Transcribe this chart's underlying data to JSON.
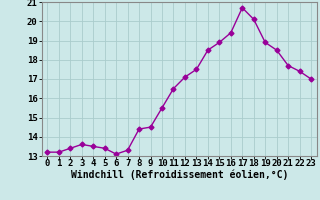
{
  "x": [
    0,
    1,
    2,
    3,
    4,
    5,
    6,
    7,
    8,
    9,
    10,
    11,
    12,
    13,
    14,
    15,
    16,
    17,
    18,
    19,
    20,
    21,
    22,
    23
  ],
  "y": [
    13.2,
    13.2,
    13.4,
    13.6,
    13.5,
    13.4,
    13.1,
    13.3,
    14.4,
    14.5,
    15.5,
    16.5,
    17.1,
    17.5,
    18.5,
    18.9,
    19.4,
    20.7,
    20.1,
    18.9,
    18.5,
    17.7,
    17.4,
    17.0
  ],
  "line_color": "#990099",
  "marker": "D",
  "marker_size": 2.5,
  "bg_color": "#cce8e8",
  "grid_color": "#aacccc",
  "xlabel": "Windchill (Refroidissement éolien,°C)",
  "xlabel_fontsize": 7,
  "ylim": [
    13,
    21
  ],
  "xlim": [
    -0.5,
    23.5
  ],
  "yticks": [
    13,
    14,
    15,
    16,
    17,
    18,
    19,
    20,
    21
  ],
  "xticks": [
    0,
    1,
    2,
    3,
    4,
    5,
    6,
    7,
    8,
    9,
    10,
    11,
    12,
    13,
    14,
    15,
    16,
    17,
    18,
    19,
    20,
    21,
    22,
    23
  ],
  "tick_fontsize": 6.5,
  "spine_color": "#888888",
  "line_width": 1.0
}
